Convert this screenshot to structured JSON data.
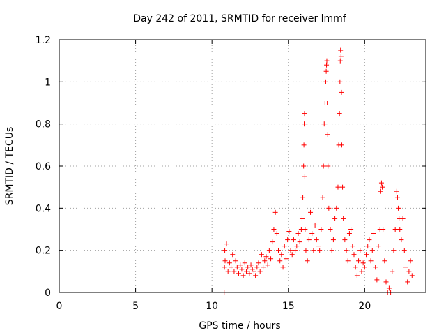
{
  "chart_data": {
    "type": "scatter",
    "title": "Day 242 of 2011, SRMTID for receiver lmmf",
    "xlabel": "GPS time / hours",
    "ylabel": "SRMTID / TECUs",
    "xlim": [
      0,
      24
    ],
    "ylim": [
      0,
      1.2
    ],
    "xticks": [
      0,
      5,
      10,
      15,
      20
    ],
    "xtick_labels": [
      "0",
      "5",
      "10",
      "15",
      "20"
    ],
    "yticks": [
      0,
      0.2,
      0.4,
      0.6,
      0.8,
      1.0,
      1.2
    ],
    "ytick_labels": [
      "0",
      "0.2",
      "0.4",
      "0.6",
      "0.8",
      "1",
      "1.2"
    ],
    "grid": true,
    "marker": "+",
    "series": [
      {
        "name": "SRMTID",
        "color": "#ff0000",
        "x": [
          10.8,
          10.82,
          10.84,
          10.86,
          10.95,
          11.05,
          11.15,
          11.25,
          11.35,
          11.45,
          11.55,
          11.65,
          11.75,
          11.85,
          11.95,
          12.05,
          12.15,
          12.25,
          12.35,
          12.45,
          12.55,
          12.65,
          12.75,
          12.85,
          12.95,
          13.05,
          13.15,
          13.25,
          13.35,
          13.45,
          13.55,
          13.65,
          13.75,
          13.85,
          13.95,
          14.05,
          14.15,
          14.25,
          14.35,
          14.45,
          14.55,
          14.65,
          14.75,
          14.85,
          14.95,
          15.05,
          15.15,
          15.25,
          15.35,
          15.45,
          15.55,
          15.65,
          15.75,
          15.85,
          15.9,
          15.95,
          16.0,
          16.02,
          16.04,
          16.06,
          16.08,
          16.1,
          16.15,
          16.25,
          16.35,
          16.45,
          16.55,
          16.65,
          16.75,
          16.85,
          16.95,
          17.05,
          17.15,
          17.25,
          17.3,
          17.35,
          17.4,
          17.45,
          17.48,
          17.5,
          17.52,
          17.55,
          17.58,
          17.6,
          17.65,
          17.75,
          17.85,
          17.95,
          18.05,
          18.15,
          18.25,
          18.3,
          18.35,
          18.38,
          18.4,
          18.42,
          18.45,
          18.48,
          18.5,
          18.55,
          18.6,
          18.7,
          18.8,
          18.9,
          19.0,
          19.1,
          19.2,
          19.3,
          19.4,
          19.5,
          19.6,
          19.7,
          19.8,
          19.9,
          20.0,
          20.1,
          20.2,
          20.3,
          20.4,
          20.5,
          20.6,
          20.7,
          20.8,
          20.9,
          21.0,
          21.05,
          21.1,
          21.15,
          21.2,
          21.3,
          21.4,
          21.5,
          21.6,
          21.7,
          21.8,
          21.9,
          22.0,
          22.1,
          22.15,
          22.2,
          22.25,
          22.3,
          22.4,
          22.5,
          22.6,
          22.7,
          22.8,
          22.9,
          23.0,
          23.1
        ],
        "y": [
          0.0,
          0.12,
          0.2,
          0.15,
          0.23,
          0.1,
          0.14,
          0.12,
          0.18,
          0.1,
          0.15,
          0.12,
          0.09,
          0.13,
          0.11,
          0.08,
          0.14,
          0.1,
          0.12,
          0.09,
          0.13,
          0.11,
          0.1,
          0.08,
          0.12,
          0.14,
          0.1,
          0.18,
          0.12,
          0.15,
          0.17,
          0.13,
          0.2,
          0.16,
          0.24,
          0.3,
          0.38,
          0.28,
          0.2,
          0.15,
          0.18,
          0.12,
          0.22,
          0.16,
          0.25,
          0.29,
          0.2,
          0.18,
          0.25,
          0.2,
          0.22,
          0.28,
          0.24,
          0.3,
          0.35,
          0.45,
          0.6,
          0.7,
          0.8,
          0.85,
          0.55,
          0.3,
          0.2,
          0.15,
          0.25,
          0.38,
          0.28,
          0.2,
          0.32,
          0.25,
          0.22,
          0.2,
          0.3,
          0.45,
          0.6,
          0.8,
          0.9,
          1.0,
          1.05,
          1.08,
          1.1,
          0.9,
          0.75,
          0.6,
          0.4,
          0.3,
          0.2,
          0.25,
          0.35,
          0.4,
          0.5,
          0.7,
          0.85,
          1.0,
          1.1,
          1.15,
          1.12,
          0.95,
          0.7,
          0.5,
          0.35,
          0.25,
          0.2,
          0.15,
          0.28,
          0.3,
          0.22,
          0.18,
          0.12,
          0.08,
          0.15,
          0.2,
          0.1,
          0.14,
          0.12,
          0.18,
          0.22,
          0.25,
          0.15,
          0.2,
          0.28,
          0.12,
          0.06,
          0.22,
          0.3,
          0.48,
          0.52,
          0.5,
          0.3,
          0.15,
          0.05,
          0.0,
          0.02,
          0.0,
          0.1,
          0.2,
          0.3,
          0.48,
          0.45,
          0.4,
          0.35,
          0.3,
          0.25,
          0.35,
          0.2,
          0.12,
          0.05,
          0.1,
          0.15,
          0.08
        ]
      }
    ]
  }
}
